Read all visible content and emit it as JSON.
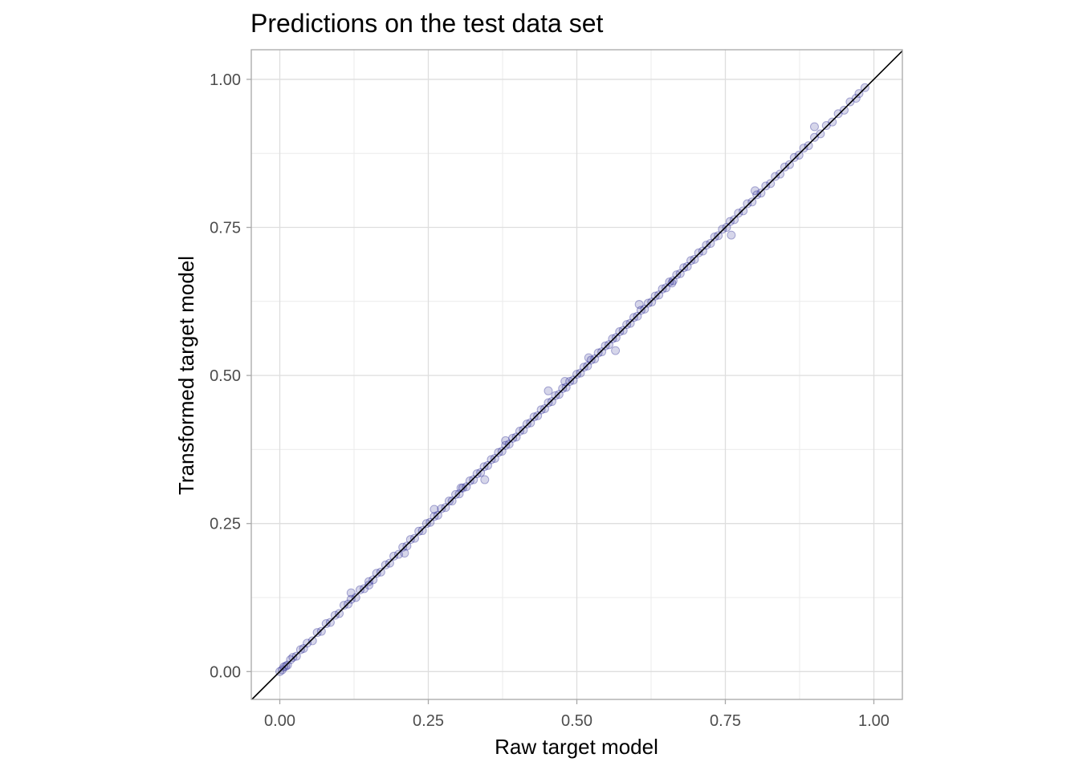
{
  "chart_data": {
    "type": "scatter",
    "title": "Predictions on the test data set",
    "xlabel": "Raw target model",
    "ylabel": "Transformed target model",
    "xlim": [
      -0.048,
      1.048
    ],
    "ylim": [
      -0.047,
      1.05
    ],
    "x_ticks": [
      0.0,
      0.25,
      0.5,
      0.75,
      1.0
    ],
    "x_tick_labels": [
      "0.00",
      "0.25",
      "0.50",
      "0.75",
      "1.00"
    ],
    "y_ticks": [
      0.0,
      0.25,
      0.5,
      0.75,
      1.0
    ],
    "y_tick_labels": [
      "0.00",
      "0.25",
      "0.50",
      "0.75",
      "1.00"
    ],
    "grid": true,
    "reference_line": {
      "type": "identity",
      "slope": 1,
      "intercept": 0
    },
    "points": [
      [
        0.0,
        0.0
      ],
      [
        0.004,
        0.003
      ],
      [
        0.007,
        0.008
      ],
      [
        0.01,
        0.009
      ],
      [
        0.013,
        0.011
      ],
      [
        0.018,
        0.02
      ],
      [
        0.022,
        0.024
      ],
      [
        0.028,
        0.026
      ],
      [
        0.035,
        0.037
      ],
      [
        0.04,
        0.039
      ],
      [
        0.046,
        0.048
      ],
      [
        0.055,
        0.052
      ],
      [
        0.063,
        0.066
      ],
      [
        0.07,
        0.068
      ],
      [
        0.078,
        0.081
      ],
      [
        0.085,
        0.083
      ],
      [
        0.093,
        0.095
      ],
      [
        0.1,
        0.098
      ],
      [
        0.108,
        0.112
      ],
      [
        0.115,
        0.114
      ],
      [
        0.12,
        0.122
      ],
      [
        0.128,
        0.125
      ],
      [
        0.135,
        0.138
      ],
      [
        0.142,
        0.14
      ],
      [
        0.15,
        0.152
      ],
      [
        0.157,
        0.155
      ],
      [
        0.163,
        0.166
      ],
      [
        0.17,
        0.168
      ],
      [
        0.178,
        0.18
      ],
      [
        0.185,
        0.183
      ],
      [
        0.192,
        0.195
      ],
      [
        0.2,
        0.198
      ],
      [
        0.207,
        0.21
      ],
      [
        0.214,
        0.212
      ],
      [
        0.22,
        0.223
      ],
      [
        0.227,
        0.225
      ],
      [
        0.234,
        0.237
      ],
      [
        0.24,
        0.238
      ],
      [
        0.247,
        0.25
      ],
      [
        0.253,
        0.252
      ],
      [
        0.26,
        0.262
      ],
      [
        0.266,
        0.264
      ],
      [
        0.272,
        0.275
      ],
      [
        0.279,
        0.277
      ],
      [
        0.285,
        0.288
      ],
      [
        0.29,
        0.288
      ],
      [
        0.296,
        0.299
      ],
      [
        0.302,
        0.3
      ],
      [
        0.308,
        0.31
      ],
      [
        0.314,
        0.312
      ],
      [
        0.32,
        0.322
      ],
      [
        0.326,
        0.324
      ],
      [
        0.332,
        0.334
      ],
      [
        0.338,
        0.336
      ],
      [
        0.344,
        0.346
      ],
      [
        0.35,
        0.348
      ],
      [
        0.356,
        0.358
      ],
      [
        0.362,
        0.36
      ],
      [
        0.368,
        0.37
      ],
      [
        0.374,
        0.372
      ],
      [
        0.38,
        0.382
      ],
      [
        0.386,
        0.384
      ],
      [
        0.392,
        0.394
      ],
      [
        0.398,
        0.396
      ],
      [
        0.404,
        0.406
      ],
      [
        0.41,
        0.408
      ],
      [
        0.416,
        0.418
      ],
      [
        0.422,
        0.42
      ],
      [
        0.428,
        0.43
      ],
      [
        0.434,
        0.432
      ],
      [
        0.44,
        0.442
      ],
      [
        0.446,
        0.444
      ],
      [
        0.452,
        0.454
      ],
      [
        0.458,
        0.456
      ],
      [
        0.464,
        0.466
      ],
      [
        0.47,
        0.468
      ],
      [
        0.476,
        0.478
      ],
      [
        0.482,
        0.48
      ],
      [
        0.488,
        0.49
      ],
      [
        0.494,
        0.492
      ],
      [
        0.5,
        0.502
      ],
      [
        0.506,
        0.504
      ],
      [
        0.512,
        0.514
      ],
      [
        0.518,
        0.516
      ],
      [
        0.524,
        0.526
      ],
      [
        0.53,
        0.528
      ],
      [
        0.536,
        0.538
      ],
      [
        0.542,
        0.54
      ],
      [
        0.548,
        0.55
      ],
      [
        0.554,
        0.552
      ],
      [
        0.56,
        0.562
      ],
      [
        0.566,
        0.564
      ],
      [
        0.572,
        0.574
      ],
      [
        0.578,
        0.576
      ],
      [
        0.584,
        0.586
      ],
      [
        0.59,
        0.588
      ],
      [
        0.596,
        0.598
      ],
      [
        0.602,
        0.6
      ],
      [
        0.608,
        0.61
      ],
      [
        0.614,
        0.612
      ],
      [
        0.62,
        0.622
      ],
      [
        0.626,
        0.624
      ],
      [
        0.632,
        0.634
      ],
      [
        0.638,
        0.636
      ],
      [
        0.644,
        0.646
      ],
      [
        0.65,
        0.648
      ],
      [
        0.656,
        0.658
      ],
      [
        0.662,
        0.66
      ],
      [
        0.668,
        0.67
      ],
      [
        0.674,
        0.672
      ],
      [
        0.68,
        0.682
      ],
      [
        0.686,
        0.684
      ],
      [
        0.692,
        0.694
      ],
      [
        0.698,
        0.696
      ],
      [
        0.705,
        0.707
      ],
      [
        0.712,
        0.71
      ],
      [
        0.718,
        0.72
      ],
      [
        0.725,
        0.723
      ],
      [
        0.732,
        0.734
      ],
      [
        0.738,
        0.736
      ],
      [
        0.745,
        0.747
      ],
      [
        0.752,
        0.75
      ],
      [
        0.758,
        0.76
      ],
      [
        0.765,
        0.763
      ],
      [
        0.772,
        0.774
      ],
      [
        0.78,
        0.778
      ],
      [
        0.787,
        0.79
      ],
      [
        0.795,
        0.793
      ],
      [
        0.803,
        0.805
      ],
      [
        0.81,
        0.808
      ],
      [
        0.818,
        0.82
      ],
      [
        0.826,
        0.824
      ],
      [
        0.834,
        0.836
      ],
      [
        0.842,
        0.84
      ],
      [
        0.85,
        0.852
      ],
      [
        0.858,
        0.856
      ],
      [
        0.866,
        0.868
      ],
      [
        0.874,
        0.872
      ],
      [
        0.882,
        0.884
      ],
      [
        0.89,
        0.888
      ],
      [
        0.9,
        0.902
      ],
      [
        0.91,
        0.908
      ],
      [
        0.92,
        0.922
      ],
      [
        0.93,
        0.928
      ],
      [
        0.94,
        0.942
      ],
      [
        0.95,
        0.948
      ],
      [
        0.96,
        0.962
      ],
      [
        0.97,
        0.968
      ],
      [
        0.975,
        0.976
      ],
      [
        0.985,
        0.986
      ],
      [
        0.345,
        0.324
      ],
      [
        0.38,
        0.39
      ],
      [
        0.452,
        0.474
      ],
      [
        0.52,
        0.53
      ],
      [
        0.565,
        0.542
      ],
      [
        0.605,
        0.62
      ],
      [
        0.76,
        0.737
      ],
      [
        0.8,
        0.812
      ],
      [
        0.21,
        0.2
      ],
      [
        0.12,
        0.133
      ],
      [
        0.15,
        0.146
      ],
      [
        0.66,
        0.656
      ],
      [
        0.305,
        0.31
      ],
      [
        0.26,
        0.274
      ],
      [
        0.48,
        0.49
      ],
      [
        0.9,
        0.92
      ]
    ],
    "point_color": "#1a1a8c",
    "line_color": "#000000"
  }
}
